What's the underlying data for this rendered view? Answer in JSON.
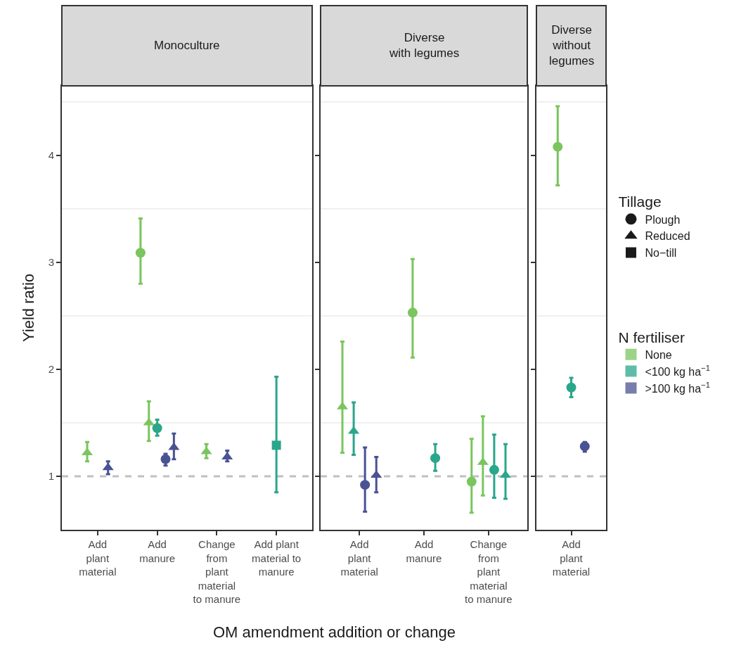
{
  "chart_data": [
    {
      "type": "scatter",
      "title": "Monoculture",
      "xlabel": "OM amendment addition or change",
      "ylabel": "Yield ratio",
      "categories": [
        "Add\nplant\nmaterial",
        "Add\nmanure",
        "Change\nfrom\nplant\nmaterial\nto manure",
        "Add plant\nmaterial to\nmanure"
      ],
      "ylim": [
        0.5,
        4.65
      ],
      "yticks": [
        1,
        {
          "value": 1.5,
          "label": null
        },
        2,
        {
          "value": 2.5,
          "label": null
        },
        3,
        {
          "value": 3.5,
          "label": null
        },
        4,
        {
          "value": 4.5,
          "label": null
        }
      ],
      "grid": true,
      "legend": "right",
      "legend_title": "N fertiliser",
      "annotations": [
        "Tillage",
        "Plough",
        "Reduced",
        "No−till"
      ],
      "ref_lines": [
        {
          "axis": "y",
          "value": 1,
          "color": "#c0c0c0",
          "line_style": "dashed"
        }
      ],
      "series": [
        {
          "name": "None",
          "color": "#7ac55e",
          "marker": "circle",
          "values": [
            null,
            3.09,
            null,
            null
          ],
          "errors": [
            null,
            [
              2.8,
              3.41
            ],
            null,
            null
          ]
        },
        {
          "color": "#7ac55e",
          "marker": "triangle",
          "values": [
            1.22,
            1.5,
            1.23,
            null
          ],
          "errors": [
            [
              1.14,
              1.32
            ],
            [
              1.33,
              1.7
            ],
            [
              1.17,
              1.3
            ],
            null
          ]
        },
        {
          "name": "<100 kg ha$^{−1}$",
          "color": "#2aa68b",
          "marker": "circle",
          "values": [
            null,
            1.45,
            null,
            null
          ],
          "errors": [
            null,
            [
              1.38,
              1.53
            ],
            null,
            null
          ]
        },
        {
          "color": "#2aa68b",
          "marker": "square",
          "values": [
            null,
            null,
            null,
            1.29
          ],
          "errors": [
            null,
            null,
            null,
            [
              0.85,
              1.93
            ]
          ]
        },
        {
          "name": ">100 kg ha$^{−1}$",
          "color": "#495393",
          "marker": "circle",
          "values": [
            null,
            1.16,
            null,
            null
          ],
          "errors": [
            null,
            [
              1.1,
              1.21
            ],
            null,
            null
          ]
        },
        {
          "color": "#495393",
          "marker": "triangle",
          "values": [
            1.08,
            1.27,
            1.18,
            null
          ],
          "errors": [
            [
              1.02,
              1.14
            ],
            [
              1.16,
              1.4
            ],
            [
              1.14,
              1.24
            ],
            null
          ]
        }
      ]
    },
    {
      "type": "scatter",
      "title": "Diverse\nwith legumes",
      "categories": [
        "Add\nplant\nmaterial",
        "Add\nmanure",
        "Change\nfrom\nplant\nmaterial\nto manure"
      ],
      "ylim": [
        0.5,
        4.65
      ],
      "yticks": [
        1,
        {
          "value": 1.5,
          "label": null
        },
        2,
        {
          "value": 2.5,
          "label": null
        },
        3,
        {
          "value": 3.5,
          "label": null
        },
        4,
        {
          "value": 4.5,
          "label": null
        }
      ],
      "grid": true,
      "tick_labels": "x",
      "ref_lines": [
        {
          "axis": "y",
          "value": 1,
          "color": "#c0c0c0",
          "line_style": "dashed"
        }
      ],
      "series": [
        {
          "color": "#7ac55e",
          "marker": "circle",
          "values": [
            null,
            2.53,
            0.95
          ],
          "errors": [
            null,
            [
              2.11,
              3.03
            ],
            [
              0.66,
              1.35
            ]
          ]
        },
        {
          "color": "#7ac55e",
          "marker": "triangle",
          "values": [
            1.65,
            null,
            1.13
          ],
          "errors": [
            [
              1.22,
              2.26
            ],
            null,
            [
              0.82,
              1.56
            ]
          ]
        },
        {
          "color": "#2aa68b",
          "marker": "circle",
          "values": [
            null,
            1.17,
            1.06
          ],
          "errors": [
            null,
            [
              1.05,
              1.3
            ],
            [
              0.8,
              1.39
            ]
          ]
        },
        {
          "color": "#2aa68b",
          "marker": "triangle",
          "values": [
            1.42,
            null,
            1.01
          ],
          "errors": [
            [
              1.2,
              1.69
            ],
            null,
            [
              0.79,
              1.3
            ]
          ]
        },
        {
          "color": "#495393",
          "marker": "circle",
          "values": [
            0.92,
            null,
            null
          ],
          "errors": [
            [
              0.67,
              1.27
            ],
            null,
            null
          ]
        },
        {
          "color": "#495393",
          "marker": "triangle",
          "values": [
            1.01,
            null,
            null
          ],
          "errors": [
            [
              0.85,
              1.18
            ],
            null,
            null
          ]
        }
      ]
    },
    {
      "type": "scatter",
      "title": "Diverse\nwithout\nlegumes",
      "categories": [
        "Add\nplant\nmaterial"
      ],
      "ylim": [
        0.5,
        4.65
      ],
      "yticks": [
        1,
        {
          "value": 1.5,
          "label": null
        },
        2,
        {
          "value": 2.5,
          "label": null
        },
        3,
        {
          "value": 3.5,
          "label": null
        },
        4,
        {
          "value": 4.5,
          "label": null
        }
      ],
      "grid": true,
      "tick_labels": "x",
      "ref_lines": [
        {
          "axis": "y",
          "value": 1,
          "color": "#c0c0c0",
          "line_style": "dashed"
        }
      ],
      "series": [
        {
          "color": "#7ac55e",
          "marker": "circle",
          "values": [
            4.08
          ],
          "errors": [
            [
              3.72,
              4.46
            ]
          ]
        },
        {
          "color": "#2aa68b",
          "marker": "circle",
          "values": [
            1.83
          ],
          "errors": [
            [
              1.74,
              1.92
            ]
          ]
        },
        {
          "color": "#495393",
          "marker": "circle",
          "values": [
            1.28
          ],
          "errors": [
            [
              1.23,
              1.32
            ]
          ]
        }
      ]
    }
  ]
}
